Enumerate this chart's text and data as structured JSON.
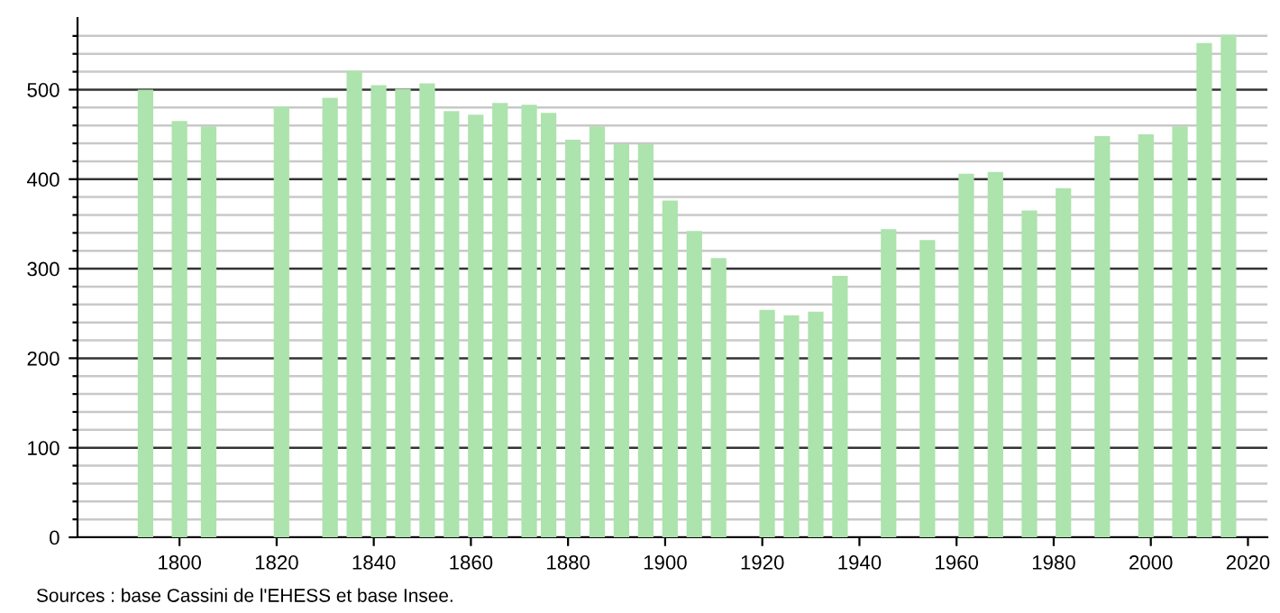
{
  "chart_data": {
    "type": "bar",
    "color": "#ade3ad",
    "x": [
      1793,
      1800,
      1806,
      1821,
      1831,
      1836,
      1841,
      1846,
      1851,
      1856,
      1861,
      1866,
      1872,
      1876,
      1881,
      1886,
      1891,
      1896,
      1901,
      1906,
      1911,
      1921,
      1926,
      1931,
      1936,
      1946,
      1954,
      1962,
      1968,
      1975,
      1982,
      1990,
      1999,
      2006,
      2011,
      2016
    ],
    "values": [
      500,
      465,
      459,
      481,
      491,
      521,
      505,
      501,
      507,
      476,
      472,
      485,
      483,
      474,
      444,
      459,
      439,
      439,
      376,
      342,
      312,
      254,
      248,
      252,
      292,
      344,
      332,
      406,
      408,
      365,
      390,
      448,
      450,
      459,
      552,
      561
    ],
    "xlim": [
      1779,
      2024
    ],
    "xticks": [
      1800,
      1820,
      1840,
      1860,
      1880,
      1900,
      1920,
      1940,
      1960,
      1980,
      2000,
      2020
    ],
    "ylim": [
      0,
      580
    ],
    "yticks": [
      0,
      {
        "value": 20,
        "label": null
      },
      {
        "value": 40,
        "label": null
      },
      {
        "value": 60,
        "label": null
      },
      {
        "value": 80,
        "label": null
      },
      100,
      {
        "value": 120,
        "label": null
      },
      {
        "value": 140,
        "label": null
      },
      {
        "value": 160,
        "label": null
      },
      {
        "value": 180,
        "label": null
      },
      200,
      {
        "value": 220,
        "label": null
      },
      {
        "value": 240,
        "label": null
      },
      {
        "value": 260,
        "label": null
      },
      {
        "value": 280,
        "label": null
      },
      300,
      {
        "value": 320,
        "label": null
      },
      {
        "value": 340,
        "label": null
      },
      {
        "value": 360,
        "label": null
      },
      {
        "value": 380,
        "label": null
      },
      400,
      {
        "value": 420,
        "label": null
      },
      {
        "value": 440,
        "label": null
      },
      {
        "value": 460,
        "label": null
      },
      {
        "value": 480,
        "label": null
      },
      500,
      {
        "value": 520,
        "label": null
      },
      {
        "value": 540,
        "label": null
      },
      {
        "value": 560,
        "label": null
      }
    ],
    "grid": "y",
    "annotations": [
      "Sources : base Cassini de l'EHESS et base Insee."
    ]
  }
}
